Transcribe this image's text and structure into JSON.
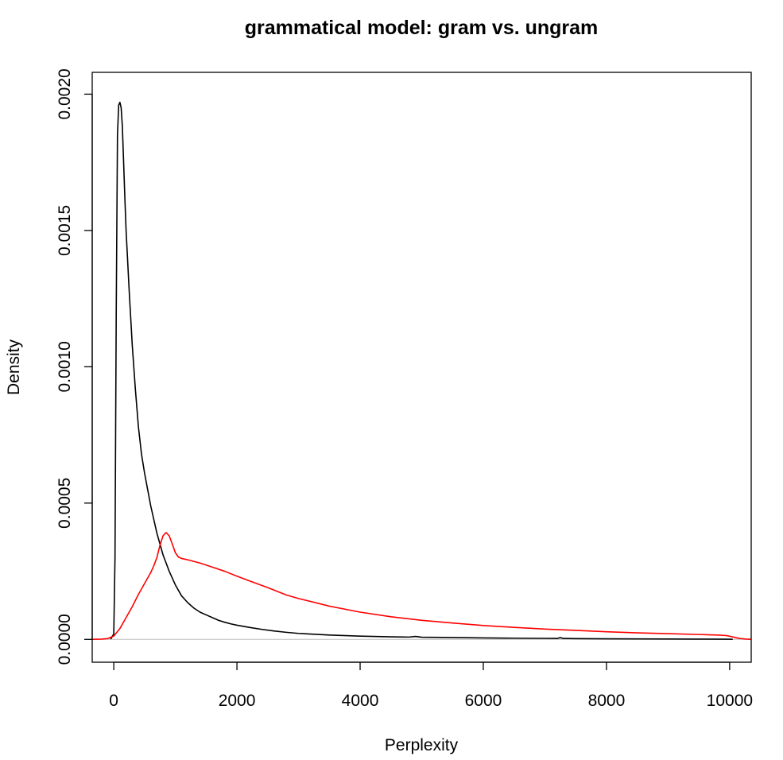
{
  "chart_data": {
    "type": "line",
    "title": "grammatical model: gram vs. ungram",
    "xlabel": "Perplexity",
    "ylabel": "Density",
    "xlim": [
      -350,
      10350
    ],
    "ylim": [
      -8.37e-05,
      0.00208
    ],
    "x_ticks": [
      0,
      2000,
      4000,
      6000,
      8000,
      10000
    ],
    "x_tick_labels": [
      "0",
      "2000",
      "4000",
      "6000",
      "8000",
      "10000"
    ],
    "y_ticks": [
      0,
      0.0005,
      0.001,
      0.0015,
      0.002
    ],
    "y_tick_labels": [
      "0.0000",
      "0.0005",
      "0.0010",
      "0.0015",
      "0.0020"
    ],
    "baseline": 0,
    "grid": false,
    "legend": "none",
    "series": [
      {
        "color": "#000000",
        "x": [
          -50,
          0,
          20,
          40,
          60,
          80,
          100,
          120,
          140,
          160,
          180,
          200,
          250,
          300,
          350,
          400,
          450,
          500,
          600,
          700,
          800,
          900,
          1000,
          1100,
          1200,
          1300,
          1400,
          1500,
          1600,
          1700,
          1800,
          1900,
          2000,
          2200,
          2400,
          2600,
          2800,
          3000,
          3500,
          4000,
          4500,
          4800,
          4900,
          5000,
          5500,
          6000,
          6500,
          7000,
          7200,
          7250,
          7300,
          7500,
          8000,
          8500,
          9000,
          9500,
          10000,
          10050
        ],
        "y": [
          1e-06,
          2e-05,
          0.0003,
          0.0012,
          0.00185,
          0.00196,
          0.00197,
          0.00195,
          0.00188,
          0.00175,
          0.00162,
          0.0015,
          0.00128,
          0.00108,
          0.00092,
          0.00078,
          0.00068,
          0.00061,
          0.00049,
          0.00039,
          0.00031,
          0.00025,
          0.0002,
          0.00016,
          0.000135,
          0.000115,
          0.0001,
          9e-05,
          8e-05,
          7e-05,
          6.3e-05,
          5.7e-05,
          5.2e-05,
          4.4e-05,
          3.7e-05,
          3.1e-05,
          2.6e-05,
          2.2e-05,
          1.6e-05,
          1.2e-05,
          9.5e-06,
          8.5e-06,
          1.1e-05,
          8e-06,
          6.8e-06,
          5.5e-06,
          4.5e-06,
          3.8e-06,
          3.5e-06,
          6.5e-06,
          3.5e-06,
          2.8e-06,
          2.2e-06,
          1.7e-06,
          1.3e-06,
          1e-06,
          8e-07,
          2e-07
        ]
      },
      {
        "color": "#ff0000",
        "x": [
          -350,
          -200,
          -100,
          0,
          100,
          200,
          300,
          400,
          500,
          600,
          650,
          700,
          750,
          800,
          850,
          900,
          950,
          1000,
          1050,
          1100,
          1200,
          1400,
          1600,
          1800,
          2000,
          2200,
          2500,
          2800,
          3000,
          3500,
          4000,
          4500,
          5000,
          5500,
          6000,
          6500,
          7000,
          7500,
          8000,
          8500,
          9000,
          9500,
          9800,
          9950,
          10050,
          10150,
          10250,
          10350
        ],
        "y": [
          2e-07,
          1e-06,
          3e-06,
          1.2e-05,
          4e-05,
          8e-05,
          0.00012,
          0.000165,
          0.000205,
          0.000245,
          0.00027,
          0.0003,
          0.000345,
          0.00038,
          0.000392,
          0.00038,
          0.00035,
          0.000318,
          0.000302,
          0.000297,
          0.000292,
          0.00028,
          0.000265,
          0.00025,
          0.000232,
          0.000215,
          0.00019,
          0.000163,
          0.00015,
          0.000122,
          0.0001,
          8.3e-05,
          7e-05,
          6e-05,
          5.1e-05,
          4.4e-05,
          3.8e-05,
          3.3e-05,
          2.8e-05,
          2.4e-05,
          2.1e-05,
          1.8e-05,
          1.6e-05,
          1.4e-05,
          9e-06,
          4e-06,
          1.5e-06,
          4e-07
        ]
      }
    ]
  }
}
